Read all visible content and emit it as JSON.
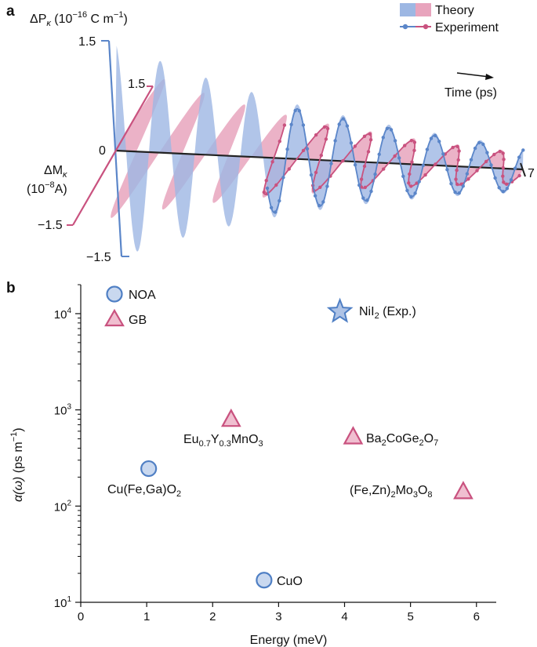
{
  "panel_a": {
    "letter": "a",
    "p_axis_label": "ΔP",
    "p_axis_sub": "κ",
    "p_axis_unit_pre": " (10",
    "p_axis_unit_exp": "−16",
    "p_axis_unit_post": " C m",
    "p_axis_unit_exp2": "−1",
    "p_axis_unit_close": ")",
    "p_ticks": [
      "1.5",
      "−1.5"
    ],
    "zero_label": "0",
    "m_axis_label": "ΔM",
    "m_axis_sub": "κ",
    "m_axis_unit_pre": "(10",
    "m_axis_unit_exp": "−8",
    "m_axis_unit_post": "A)",
    "m_ticks": [
      "1.5",
      "−1.5"
    ],
    "time_label": "Time (ps)",
    "time_end": "7",
    "legend_theory": "Theory",
    "legend_experiment": "Experiment",
    "colors": {
      "p": "#5b86c9",
      "m": "#c9527f",
      "p_fill": "#9db7e3",
      "m_fill": "#e8a4bd",
      "axis": "#222222"
    }
  },
  "chart_data": {
    "type": "scatter",
    "panel": "b",
    "title": "",
    "xlabel": "Energy (meV)",
    "ylabel_main": "α(ω)",
    "ylabel_unit": " (ps m",
    "ylabel_unit_exp": "−1",
    "ylabel_unit_close": ")",
    "xlim": [
      0,
      6.3
    ],
    "ylim": [
      10,
      20000
    ],
    "yscale": "log",
    "x_ticks": [
      "0",
      "1",
      "2",
      "3",
      "4",
      "5",
      "6"
    ],
    "y_ticks": [
      {
        "base": "10",
        "exp": "1",
        "value": 10
      },
      {
        "base": "10",
        "exp": "2",
        "value": 100
      },
      {
        "base": "10",
        "exp": "3",
        "value": 1000
      },
      {
        "base": "10",
        "exp": "4",
        "value": 10000
      }
    ],
    "legend": [
      {
        "name": "NOA",
        "marker": "circle"
      },
      {
        "name": "GB",
        "marker": "triangle"
      }
    ],
    "points": [
      {
        "material": "Cu(Fe,Ga)O",
        "sub": "2",
        "marker": "circle",
        "x": 1.03,
        "y": 245
      },
      {
        "material": "CuO",
        "sub": "",
        "marker": "circle",
        "x": 2.78,
        "y": 17
      },
      {
        "material": "Eu0.7Y0.3MnO3",
        "marker": "triangle",
        "x": 2.28,
        "y": 790
      },
      {
        "material": "Ba2CoGe2O7",
        "marker": "triangle",
        "x": 4.13,
        "y": 520
      },
      {
        "material": "(Fe,Zn)2Mo3O8",
        "marker": "triangle",
        "x": 5.8,
        "y": 140
      },
      {
        "material": "NiI2 (Exp.)",
        "marker": "star",
        "x": 3.93,
        "y": 10500
      }
    ],
    "colors": {
      "circle_fill": "#c9d8ef",
      "circle_stroke": "#4f7fc4",
      "tri_fill": "#f0bfd0",
      "tri_stroke": "#c9527f",
      "star_fill": "#aec3e6",
      "star_stroke": "#4f7fc4"
    }
  }
}
